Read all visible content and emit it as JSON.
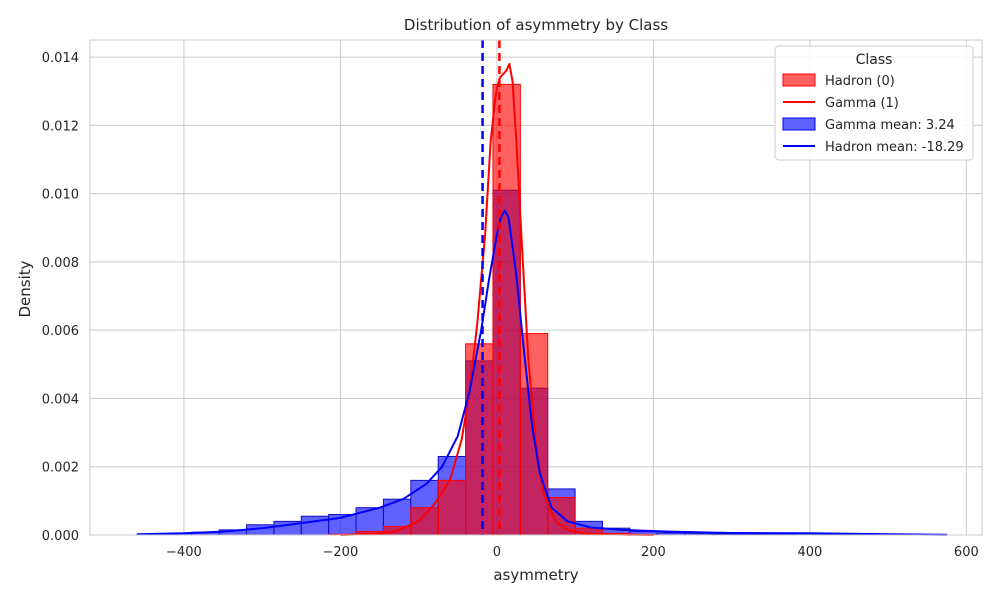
{
  "chart_data": {
    "type": "histogram",
    "title": "Distribution of asymmetry by Class",
    "xlabel": "asymmetry",
    "ylabel": "Density",
    "xlim": [
      -520,
      620
    ],
    "ylim": [
      0,
      0.0145
    ],
    "x_ticks": [
      -400,
      -200,
      0,
      200,
      400,
      600
    ],
    "x_tick_labels": [
      "−400",
      "−200",
      "0",
      "200",
      "400",
      "600"
    ],
    "y_ticks": [
      0,
      0.002,
      0.004,
      0.006,
      0.008,
      0.01,
      0.012,
      0.014
    ],
    "y_tick_labels": [
      "0.000",
      "0.002",
      "0.004",
      "0.006",
      "0.008",
      "0.010",
      "0.012",
      "0.014"
    ],
    "grid": true,
    "legend": {
      "title": "Class",
      "position": "top-right",
      "entries": [
        {
          "label": "Hadron (0)",
          "kind": "patch",
          "color": "#ff0000"
        },
        {
          "label": "Gamma (1)",
          "kind": "line",
          "color": "#ff0000"
        },
        {
          "label": "Gamma mean: 3.24",
          "kind": "patch",
          "color": "#0000ff"
        },
        {
          "label": "Hadron mean: -18.29",
          "kind": "line",
          "color": "#0000ff"
        }
      ]
    },
    "bin_edges": [
      -460,
      -425,
      -390,
      -355,
      -320,
      -285,
      -250,
      -215,
      -180,
      -145,
      -110,
      -75,
      -40,
      -5,
      30,
      65,
      100,
      135,
      170,
      205,
      240,
      275,
      310,
      345,
      380,
      415,
      450,
      485,
      520,
      555,
      575
    ],
    "series": [
      {
        "name": "Gamma (1)",
        "color": "#ff0000",
        "hist": [
          0,
          0,
          0,
          0,
          0,
          0,
          0,
          2e-05,
          0.0001,
          0.00025,
          0.0008,
          0.0016,
          0.0056,
          0.0132,
          0.0059,
          0.0011,
          0.0002,
          5e-05,
          1e-05,
          0,
          0,
          0,
          0,
          0,
          0,
          0,
          0,
          0,
          0,
          0
        ],
        "kde_x": [
          -200,
          -160,
          -130,
          -100,
          -80,
          -60,
          -45,
          -35,
          -25,
          -15,
          -8,
          -2,
          0,
          4,
          8,
          12,
          16,
          20,
          25,
          32,
          40,
          50,
          60,
          75,
          90,
          110,
          140,
          170,
          200
        ],
        "kde_y": [
          0,
          3e-05,
          0.0001,
          0.0004,
          0.0009,
          0.0016,
          0.0028,
          0.0042,
          0.0062,
          0.0088,
          0.0115,
          0.0128,
          0.0131,
          0.0134,
          0.0135,
          0.0136,
          0.0138,
          0.0133,
          0.0115,
          0.0085,
          0.0052,
          0.0026,
          0.0012,
          0.0004,
          0.00015,
          5e-05,
          2e-05,
          1e-05,
          0
        ],
        "mean": 3.24
      },
      {
        "name": "Hadron (0)",
        "color": "#0000ff",
        "hist": [
          2e-05,
          4e-05,
          8e-05,
          0.00015,
          0.0003,
          0.0004,
          0.00055,
          0.0006,
          0.0008,
          0.00105,
          0.0016,
          0.0023,
          0.0051,
          0.0101,
          0.0043,
          0.00135,
          0.0004,
          0.0002,
          0.0001,
          6e-05,
          4e-05,
          3e-05,
          2e-05,
          2e-05,
          1e-05,
          1e-05,
          1e-05,
          1e-05,
          1e-05,
          1e-05
        ],
        "kde_x": [
          -460,
          -400,
          -350,
          -300,
          -250,
          -200,
          -150,
          -120,
          -90,
          -70,
          -50,
          -35,
          -20,
          -10,
          0,
          5,
          10,
          15,
          25,
          35,
          45,
          55,
          70,
          90,
          120,
          160,
          220,
          300,
          400,
          500,
          575
        ],
        "kde_y": [
          2e-05,
          5e-05,
          0.0001,
          0.0002,
          0.00035,
          0.0005,
          0.0008,
          0.00105,
          0.0015,
          0.002,
          0.0029,
          0.0042,
          0.006,
          0.0075,
          0.0088,
          0.0093,
          0.0095,
          0.0093,
          0.0076,
          0.0053,
          0.0032,
          0.0018,
          0.0008,
          0.0004,
          0.00022,
          0.00015,
          0.0001,
          6e-05,
          5e-05,
          2e-05,
          1e-05
        ],
        "mean": -18.29
      }
    ]
  }
}
